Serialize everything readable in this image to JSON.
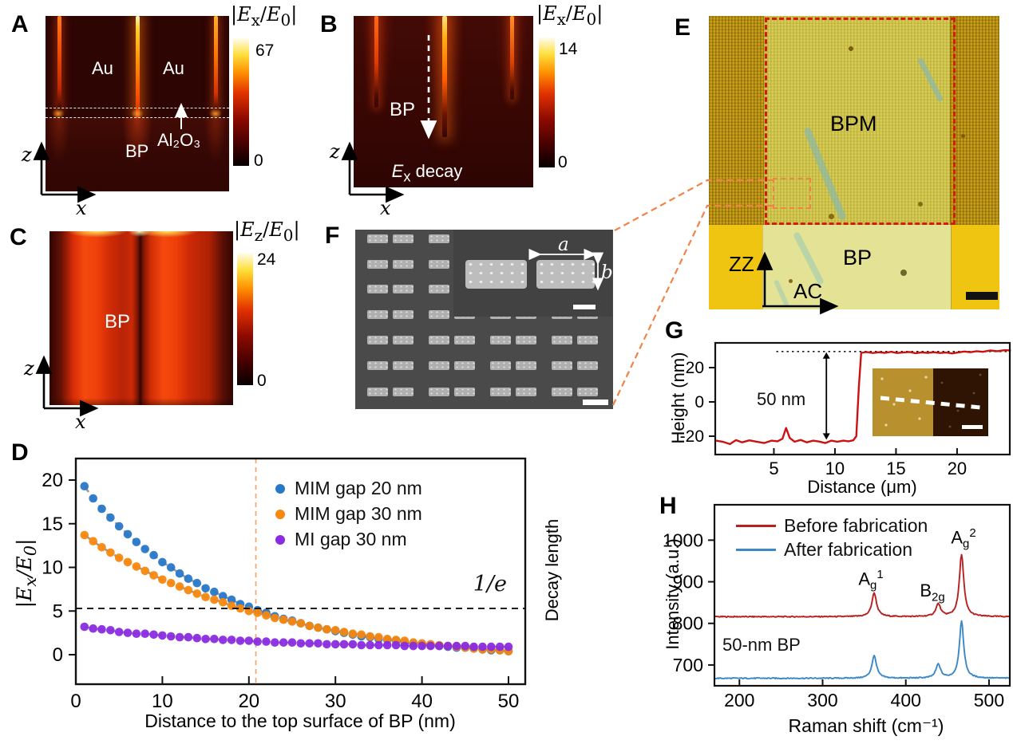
{
  "panel_labels": {
    "a": "A",
    "b": "B",
    "c": "C",
    "d": "D",
    "e": "E",
    "f": "F",
    "g": "G",
    "h": "H"
  },
  "panel_a": {
    "au_left": "Au",
    "au_right": "Au",
    "bp": "BP",
    "al2o3": "Al₂O₃",
    "axis_vertical": "z",
    "axis_horizontal": "x",
    "colorbar": {
      "title_html": "|<i>E</i><sub>x</sub>/<i>E</i><sub>0</sub>|",
      "max": "67",
      "min": "0"
    }
  },
  "panel_b": {
    "bp": "BP",
    "decay_html": "<i>E</i><sub>x</sub> decay",
    "axis_vertical": "z",
    "axis_horizontal": "x",
    "colorbar": {
      "title_html": "|<i>E</i><sub>x</sub>/<i>E</i><sub>0</sub>|",
      "max": "14",
      "min": "0"
    }
  },
  "panel_c": {
    "bp": "BP",
    "axis_vertical": "z",
    "axis_horizontal": "x",
    "colorbar": {
      "title_html": "|<i>E</i><sub>z</sub>/<i>E</i><sub>0</sub>|",
      "max": "24",
      "min": "0"
    }
  },
  "panel_e": {
    "bpm": "BPM",
    "bp": "BP",
    "axis_vertical": "ZZ",
    "axis_horizontal": "AC"
  },
  "panel_f": {
    "dim_a_html": "a",
    "dim_b_html": "b"
  },
  "chart_data": [
    {
      "panel": "D",
      "type": "scatter",
      "xlabel": "Distance to the top surface of BP (nm)",
      "ylabel": "|Ex/E0|",
      "ylabel_html": "|<i>E</i><sub>x</sub>/<i>E</i><sub>0</sub>|",
      "right_label": "Decay length",
      "xlim": [
        0,
        52
      ],
      "ylim": [
        -2.6,
        22.3
      ],
      "xticks": [
        0,
        10,
        20,
        30,
        40,
        50
      ],
      "yticks": [
        0,
        5,
        10,
        15,
        20
      ],
      "grid": false,
      "legend_position": "upper right",
      "hline": {
        "y": 5.3,
        "label_html": "1/<i>e</i>"
      },
      "vline": {
        "x": 20.8,
        "color": "#f5a065"
      },
      "fit_color": "#9a9a9a",
      "x_start": 1,
      "x_step": 1,
      "series": [
        {
          "name": "MIM gap 20 nm",
          "color": "#2878c8",
          "y": [
            19.3,
            17.9,
            16.7,
            15.7,
            14.7,
            13.8,
            12.9,
            12.1,
            11.4,
            10.6,
            10.0,
            9.3,
            8.7,
            8.2,
            7.6,
            7.2,
            6.7,
            6.3,
            5.8,
            5.5,
            5.1,
            4.8,
            4.4,
            4.1,
            3.9,
            3.6,
            3.3,
            3.1,
            2.9,
            2.7,
            2.5,
            2.3,
            2.1,
            2.0,
            1.8,
            1.7,
            1.6,
            1.4,
            1.3,
            1.2,
            1.1,
            1.0,
            0.9,
            0.8,
            0.8,
            0.7,
            0.6,
            0.5,
            0.5,
            0.4
          ]
        },
        {
          "name": "MIM gap 30 nm",
          "color": "#f8870e",
          "y": [
            13.7,
            13.0,
            12.3,
            11.7,
            11.1,
            10.6,
            10.1,
            9.6,
            9.1,
            8.6,
            8.2,
            7.8,
            7.4,
            7.0,
            6.6,
            6.3,
            6.0,
            5.6,
            5.3,
            5.0,
            4.8,
            4.5,
            4.2,
            4.0,
            3.8,
            3.6,
            3.3,
            3.1,
            2.9,
            2.8,
            2.6,
            2.4,
            2.3,
            2.1,
            2.0,
            1.8,
            1.7,
            1.6,
            1.4,
            1.3,
            1.2,
            1.1,
            1.0,
            0.9,
            0.8,
            0.7,
            0.6,
            0.6,
            0.5,
            0.4
          ]
        },
        {
          "name": "MI gap 30 nm",
          "color": "#8a2be2",
          "y": [
            3.2,
            3.0,
            2.9,
            2.8,
            2.6,
            2.5,
            2.4,
            2.4,
            2.3,
            2.2,
            2.1,
            2.0,
            2.0,
            1.9,
            1.8,
            1.8,
            1.7,
            1.7,
            1.6,
            1.6,
            1.5,
            1.5,
            1.4,
            1.4,
            1.4,
            1.3,
            1.3,
            1.3,
            1.2,
            1.2,
            1.2,
            1.2,
            1.1,
            1.1,
            1.1,
            1.1,
            1.1,
            1.0,
            1.0,
            1.0,
            1.0,
            1.0,
            1.0,
            1.0,
            1.0,
            0.9,
            0.9,
            0.9,
            0.9,
            0.9
          ]
        }
      ]
    },
    {
      "panel": "G",
      "type": "line",
      "xlabel": "Distance (μm)",
      "ylabel": "Height (nm)",
      "xlim": [
        0.2,
        24.4
      ],
      "ylim": [
        -31,
        34.5
      ],
      "xticks": [
        5,
        10,
        15,
        20
      ],
      "yticks": [
        -20,
        0,
        20
      ],
      "line_color": "#cc1111",
      "ref_line_y": 29.4,
      "step_annotation": "50 nm",
      "step_height_nm": 50,
      "points": [
        [
          0.2,
          -22.5
        ],
        [
          0.8,
          -23.2
        ],
        [
          1.4,
          -24.6
        ],
        [
          1.9,
          -22.3
        ],
        [
          2.4,
          -23.6
        ],
        [
          3.0,
          -22.4
        ],
        [
          3.6,
          -23.2
        ],
        [
          4.2,
          -24.0
        ],
        [
          4.8,
          -22.6
        ],
        [
          5.3,
          -23.0
        ],
        [
          5.7,
          -21.5
        ],
        [
          6.0,
          -15.2
        ],
        [
          6.3,
          -21.0
        ],
        [
          6.7,
          -23.2
        ],
        [
          7.2,
          -22.2
        ],
        [
          7.7,
          -23.6
        ],
        [
          8.2,
          -22.6
        ],
        [
          8.7,
          -23.1
        ],
        [
          9.2,
          -24.0
        ],
        [
          9.7,
          -22.6
        ],
        [
          10.2,
          -23.2
        ],
        [
          10.7,
          -22.6
        ],
        [
          11.1,
          -23.0
        ],
        [
          11.5,
          -22.4
        ],
        [
          11.75,
          -20.0
        ],
        [
          11.95,
          8.0
        ],
        [
          12.15,
          28.6
        ],
        [
          12.6,
          29.1
        ],
        [
          13.1,
          28.5
        ],
        [
          13.6,
          29.0
        ],
        [
          14.1,
          28.6
        ],
        [
          14.6,
          29.2
        ],
        [
          15.1,
          28.5
        ],
        [
          15.6,
          28.9
        ],
        [
          16.1,
          29.1
        ],
        [
          16.6,
          28.4
        ],
        [
          17.1,
          28.9
        ],
        [
          17.6,
          28.6
        ],
        [
          18.1,
          29.0
        ],
        [
          18.6,
          28.5
        ],
        [
          19.1,
          28.8
        ],
        [
          19.6,
          28.3
        ],
        [
          20.1,
          28.9
        ],
        [
          20.6,
          29.4
        ],
        [
          21.1,
          29.0
        ],
        [
          21.6,
          29.6
        ],
        [
          22.1,
          29.2
        ],
        [
          22.7,
          30.0
        ],
        [
          23.3,
          29.6
        ],
        [
          23.9,
          30.2
        ],
        [
          24.4,
          30.0
        ]
      ]
    },
    {
      "panel": "H",
      "type": "line",
      "xlabel": "Raman shift (cm⁻¹)",
      "ylabel": "Intensity (a.u.)",
      "xlim": [
        170,
        525
      ],
      "ylim": [
        650,
        1085
      ],
      "xticks": [
        200,
        300,
        400,
        500
      ],
      "yticks": [
        700,
        800,
        900,
        1000
      ],
      "annotation": "50-nm BP",
      "peak_labels": [
        {
          "html": "A<sub>g</sub><sup>1</sup>",
          "x": 362
        },
        {
          "html": "B<sub>2g</sub>",
          "x": 439
        },
        {
          "html": "A<sub>g</sub><sup>2</sup>",
          "x": 467
        }
      ],
      "noise_amp": 1.3,
      "series": [
        {
          "name": "Before fabrication",
          "color": "#b62020",
          "baseline": 816,
          "peaks": [
            {
              "center": 362,
              "height": 57,
              "width": 3.4
            },
            {
              "center": 439,
              "height": 30,
              "width": 3.4
            },
            {
              "center": 467,
              "height": 150,
              "width": 3.2
            }
          ]
        },
        {
          "name": "After fabrication",
          "color": "#3c88c4",
          "baseline": 668,
          "peaks": [
            {
              "center": 362,
              "height": 54,
              "width": 3.4
            },
            {
              "center": 439,
              "height": 33,
              "width": 3.4
            },
            {
              "center": 467,
              "height": 136,
              "width": 3.2
            }
          ]
        }
      ]
    }
  ]
}
